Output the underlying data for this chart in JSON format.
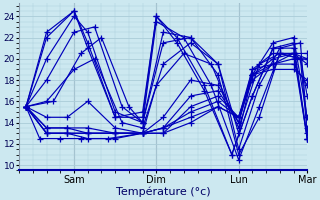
{
  "xlabel": "Température (°c)",
  "bg_color": "#cce8f0",
  "plot_bg_color": "#cce8f0",
  "line_color": "#0000bb",
  "marker": "+",
  "markersize": 4,
  "linewidth": 0.85,
  "yticks": [
    10,
    12,
    14,
    16,
    18,
    20,
    22,
    24
  ],
  "ylim": [
    9.5,
    25.2
  ],
  "xlim": [
    0,
    84
  ],
  "xtick_positions": [
    16,
    40,
    64,
    84
  ],
  "xtick_labels": [
    "Sam",
    "Dim",
    "Lun",
    "Mar"
  ],
  "grid_color": "#aaccd8",
  "grid_linewidth": 0.5,
  "vline_positions": [
    16,
    40,
    64
  ],
  "start_x": 2,
  "series": [
    {
      "x": [
        2,
        8,
        16,
        20,
        28,
        36,
        40,
        46,
        54,
        62,
        68,
        74,
        80,
        84
      ],
      "y": [
        15.5,
        22.5,
        24.5,
        21.0,
        14.5,
        15.0,
        24.0,
        22.0,
        17.5,
        11.0,
        16.5,
        21.0,
        21.5,
        12.5
      ]
    },
    {
      "x": [
        2,
        8,
        16,
        20,
        28,
        36,
        40,
        46,
        54,
        62,
        68,
        74,
        80,
        84
      ],
      "y": [
        15.5,
        22.0,
        24.5,
        21.5,
        14.5,
        14.5,
        24.0,
        21.5,
        17.0,
        11.0,
        16.5,
        21.0,
        21.0,
        12.5
      ]
    },
    {
      "x": [
        2,
        8,
        16,
        20,
        28,
        36,
        40,
        48,
        56,
        64,
        70,
        76,
        80,
        84
      ],
      "y": [
        15.5,
        20.0,
        24.0,
        22.5,
        15.0,
        14.0,
        23.5,
        22.0,
        17.5,
        10.5,
        15.5,
        20.5,
        20.5,
        12.5
      ]
    },
    {
      "x": [
        2,
        8,
        16,
        22,
        30,
        36,
        42,
        50,
        58,
        64,
        70,
        76,
        82,
        84
      ],
      "y": [
        15.5,
        18.0,
        22.5,
        23.0,
        15.5,
        14.0,
        22.5,
        22.0,
        18.5,
        11.0,
        14.5,
        20.5,
        20.0,
        13.0
      ]
    },
    {
      "x": [
        2,
        10,
        18,
        24,
        32,
        36,
        42,
        50,
        58,
        64,
        70,
        76,
        82,
        84
      ],
      "y": [
        15.5,
        16.0,
        20.5,
        22.0,
        15.5,
        14.0,
        21.5,
        22.0,
        19.5,
        11.5,
        17.5,
        21.0,
        21.5,
        13.5
      ]
    },
    {
      "x": [
        2,
        8,
        16,
        22,
        30,
        36,
        42,
        50,
        58,
        64,
        68,
        74,
        80,
        84
      ],
      "y": [
        15.5,
        16.0,
        19.0,
        20.0,
        14.0,
        13.5,
        19.5,
        21.5,
        19.5,
        13.0,
        18.5,
        21.5,
        22.0,
        14.5
      ]
    },
    {
      "x": [
        2,
        8,
        14,
        20,
        28,
        36,
        40,
        48,
        56,
        64,
        70,
        76,
        82,
        84
      ],
      "y": [
        15.5,
        14.5,
        14.5,
        16.0,
        13.5,
        13.0,
        17.5,
        20.5,
        19.5,
        13.5,
        19.5,
        20.5,
        20.0,
        16.5
      ]
    },
    {
      "x": [
        2,
        8,
        14,
        20,
        28,
        36,
        42,
        50,
        58,
        64,
        68,
        74,
        80,
        84
      ],
      "y": [
        15.5,
        13.5,
        13.5,
        13.5,
        13.0,
        13.0,
        14.5,
        18.0,
        17.5,
        14.0,
        19.0,
        19.5,
        19.5,
        17.5
      ]
    },
    {
      "x": [
        2,
        8,
        14,
        20,
        28,
        36,
        42,
        50,
        58,
        64,
        68,
        74,
        80,
        84
      ],
      "y": [
        15.5,
        13.5,
        13.5,
        13.0,
        13.0,
        13.0,
        13.5,
        16.5,
        17.0,
        14.0,
        18.5,
        19.0,
        19.0,
        18.0
      ]
    },
    {
      "x": [
        2,
        8,
        14,
        20,
        28,
        36,
        42,
        50,
        58,
        64,
        68,
        74,
        80,
        84
      ],
      "y": [
        15.5,
        13.0,
        13.0,
        12.5,
        12.5,
        13.0,
        13.0,
        15.5,
        16.5,
        14.5,
        19.0,
        20.5,
        20.5,
        19.5
      ]
    },
    {
      "x": [
        2,
        8,
        14,
        20,
        28,
        36,
        42,
        50,
        58,
        64,
        68,
        74,
        80,
        84
      ],
      "y": [
        15.5,
        13.0,
        13.0,
        13.0,
        13.0,
        13.0,
        13.5,
        15.0,
        16.0,
        14.5,
        18.5,
        20.0,
        20.5,
        20.0
      ]
    },
    {
      "x": [
        2,
        8,
        14,
        20,
        28,
        36,
        42,
        50,
        58,
        64,
        68,
        74,
        80,
        84
      ],
      "y": [
        15.5,
        13.0,
        13.0,
        13.0,
        13.0,
        13.0,
        13.5,
        14.5,
        15.5,
        14.5,
        18.0,
        19.5,
        20.0,
        20.0
      ]
    },
    {
      "x": [
        2,
        6,
        12,
        18,
        26,
        36,
        42,
        50,
        58,
        64,
        68,
        74,
        80,
        84
      ],
      "y": [
        15.5,
        12.5,
        12.5,
        12.5,
        12.5,
        13.0,
        13.0,
        14.0,
        15.5,
        14.5,
        18.5,
        19.5,
        20.5,
        20.5
      ]
    }
  ]
}
